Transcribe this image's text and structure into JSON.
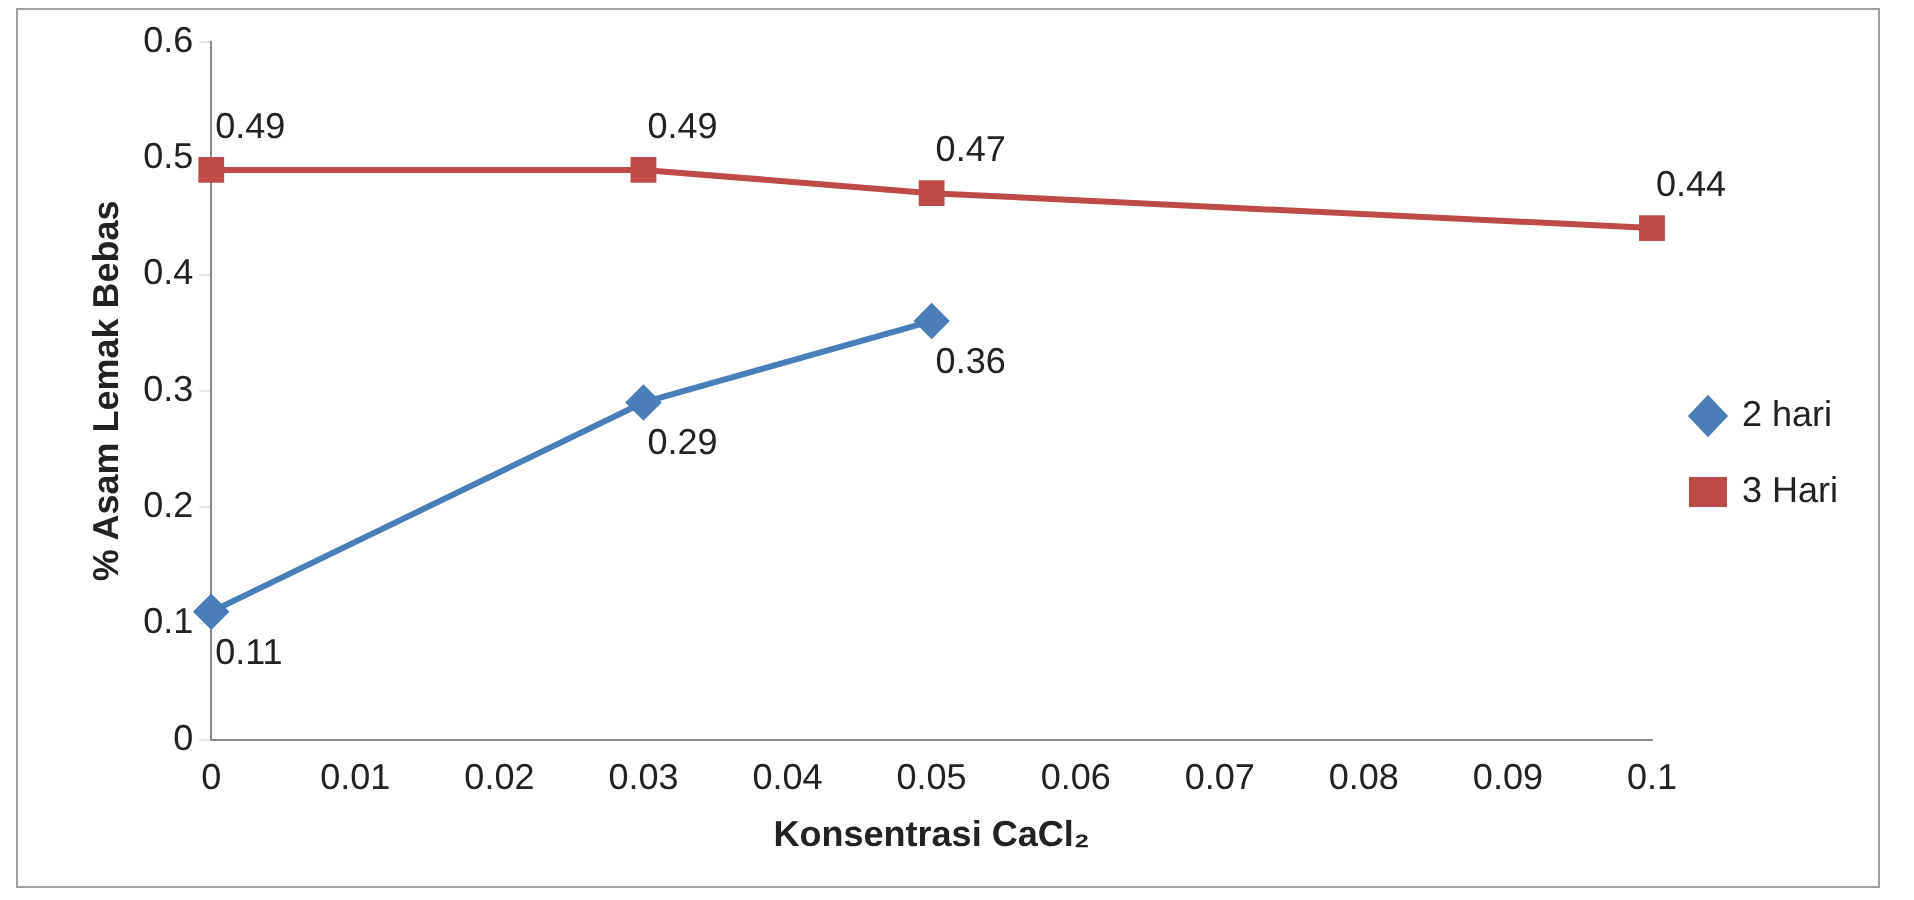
{
  "chart_data": {
    "type": "line",
    "xlabel": "Konsentrasi CaCl₂",
    "ylabel": "% Asam Lemak Bebas",
    "xlim": [
      0,
      0.1
    ],
    "xticks": [
      0,
      0.01,
      0.02,
      0.03,
      0.04,
      0.05,
      0.06,
      0.07,
      0.08,
      0.09,
      0.1
    ],
    "ylim": [
      0,
      0.6
    ],
    "yticks": [
      0,
      0.1,
      0.2,
      0.3,
      0.4,
      0.5,
      0.6
    ],
    "series": [
      {
        "name": "2 hari",
        "color": "#4a7ebb",
        "marker": "diamond",
        "x": [
          0,
          0.03,
          0.05
        ],
        "values": [
          0.11,
          0.29,
          0.36
        ]
      },
      {
        "name": "3 Hari",
        "color": "#be4b48",
        "marker": "square",
        "x": [
          0,
          0.03,
          0.05,
          0.1
        ],
        "values": [
          0.49,
          0.49,
          0.47,
          0.44
        ]
      }
    ],
    "data_labels": true,
    "grid": false,
    "legend": "right",
    "line_style": "solid"
  }
}
